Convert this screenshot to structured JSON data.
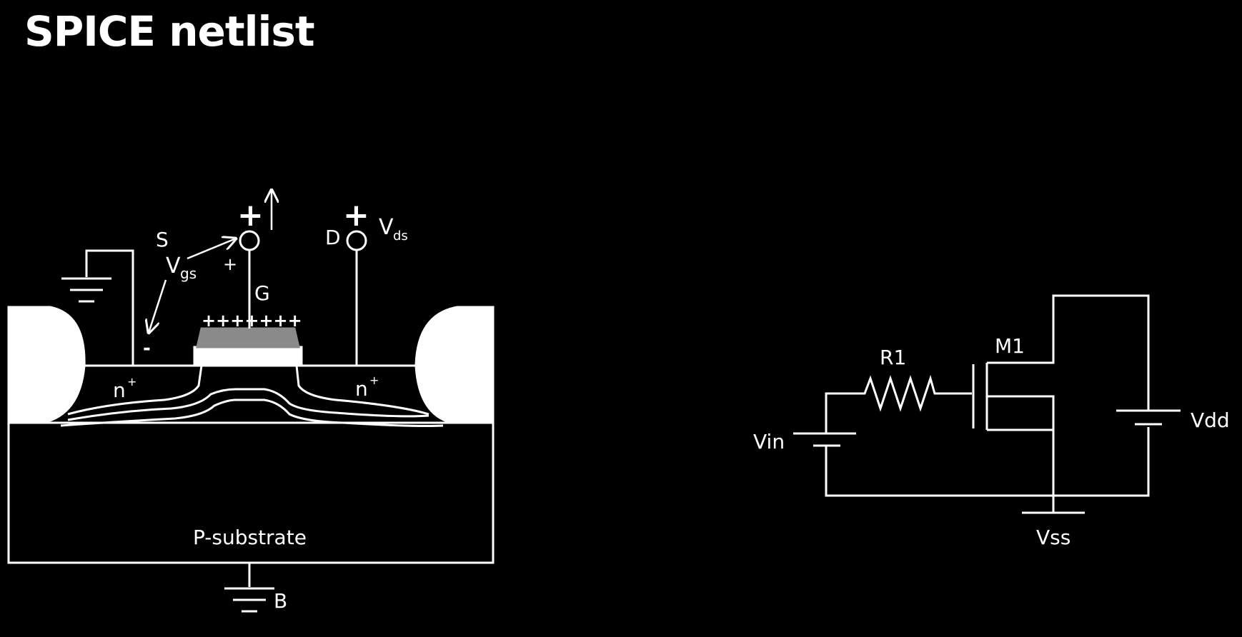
{
  "title": "SPICE netlist",
  "mosfet": {
    "source": "S",
    "vgs_main": "V",
    "vgs_sub": "gs",
    "plus": "+",
    "minus": "-",
    "gate": "G",
    "gate_charges": "+++++++",
    "drain": "D",
    "vds_main": "V",
    "vds_sub": "ds",
    "n_plus_left": "n",
    "n_plus_right": "n",
    "sup_plus": "+",
    "substrate": "P-substrate",
    "body": "B"
  },
  "circuit": {
    "r1": "R1",
    "m1": "M1",
    "vin": "Vin",
    "vdd": "Vdd",
    "vss": "Vss"
  }
}
